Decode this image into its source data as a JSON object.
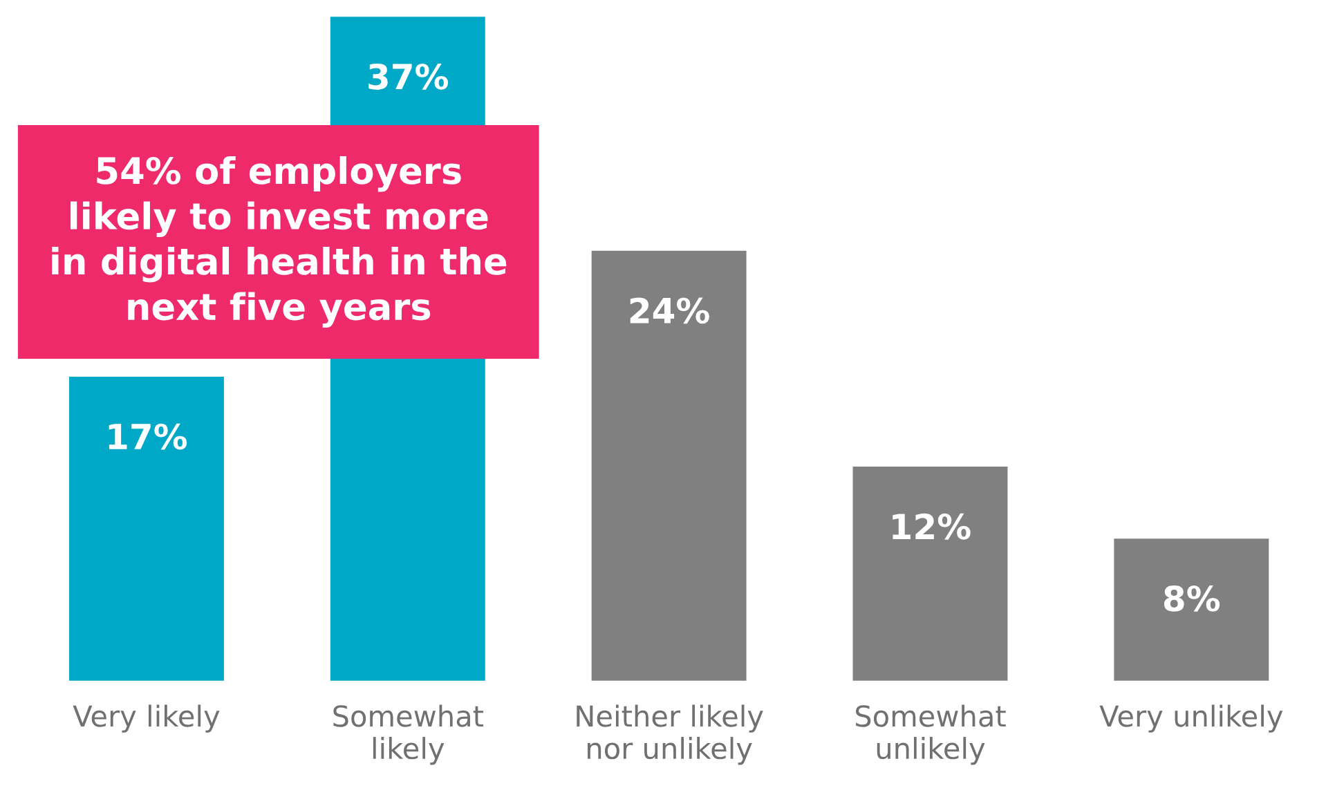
{
  "chart_data": {
    "type": "bar",
    "categories": [
      "Very likely",
      "Somewhat\nlikely",
      "Neither likely\nnor unlikely",
      "Somewhat\nunlikely",
      "Very unlikely"
    ],
    "values": [
      17,
      37,
      24,
      12,
      8
    ],
    "colors": [
      "#00a8c8",
      "#00a8c8",
      "#808080",
      "#808080",
      "#808080"
    ],
    "value_labels": [
      "17%",
      "37%",
      "24%",
      "12%",
      "8%"
    ],
    "tick_labels": "x",
    "annotations": [
      "54% of employers\nlikely to invest more\nin digital health in the\nnext five years"
    ],
    "grid": false,
    "legend": false
  }
}
